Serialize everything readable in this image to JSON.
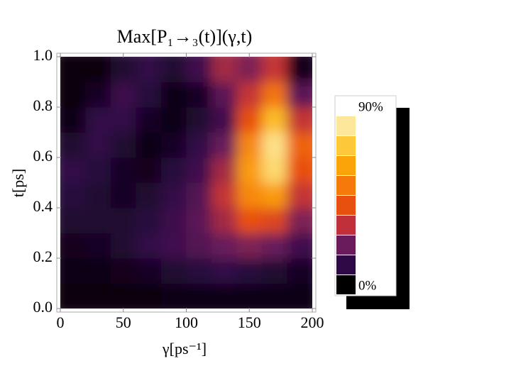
{
  "chart_data": {
    "type": "heatmap",
    "title": "Max[P₁→₃(t)](γ,t)",
    "xlabel": "γ[ps⁻¹]",
    "ylabel": "t[ps]",
    "x": [
      10,
      30,
      50,
      70,
      90,
      110,
      130,
      150,
      170,
      190
    ],
    "y": [
      0.05,
      0.15,
      0.25,
      0.35,
      0.45,
      0.55,
      0.65,
      0.75,
      0.85,
      0.95
    ],
    "values": [
      [
        2,
        2,
        2,
        2,
        3,
        3,
        4,
        4,
        4,
        3
      ],
      [
        3,
        4,
        5,
        6,
        8,
        10,
        12,
        10,
        8,
        6
      ],
      [
        5,
        6,
        8,
        12,
        15,
        18,
        22,
        25,
        22,
        15
      ],
      [
        8,
        8,
        8,
        10,
        14,
        20,
        30,
        45,
        42,
        25
      ],
      [
        10,
        8,
        6,
        8,
        12,
        18,
        35,
        60,
        65,
        35
      ],
      [
        12,
        10,
        6,
        5,
        10,
        15,
        30,
        65,
        85,
        45
      ],
      [
        8,
        12,
        8,
        4,
        6,
        12,
        22,
        60,
        88,
        50
      ],
      [
        4,
        12,
        12,
        6,
        3,
        8,
        15,
        45,
        75,
        35
      ],
      [
        2,
        6,
        14,
        10,
        4,
        6,
        20,
        35,
        55,
        20
      ],
      [
        2,
        2,
        8,
        12,
        8,
        15,
        30,
        25,
        35,
        5
      ]
    ],
    "xlim": [
      0,
      200
    ],
    "ylim": [
      0,
      1
    ],
    "xticks": [
      0,
      50,
      100,
      150,
      200
    ],
    "yticks": [
      {
        "value": 0,
        "label": "0.0"
      },
      0.2,
      0.4,
      0.6,
      0.8,
      {
        "value": 1,
        "label": "1.0"
      }
    ],
    "clim": [
      0,
      90
    ],
    "cticks": [
      {
        "value": 0,
        "label": "0%"
      },
      {
        "value": 90,
        "label": "90%"
      }
    ],
    "colors": [
      "#000000",
      "#2d0a45",
      "#6a1b5c",
      "#c0303a",
      "#e85010",
      "#f57a0a",
      "#fba40a",
      "#fdc83a",
      "#fde79a"
    ]
  }
}
